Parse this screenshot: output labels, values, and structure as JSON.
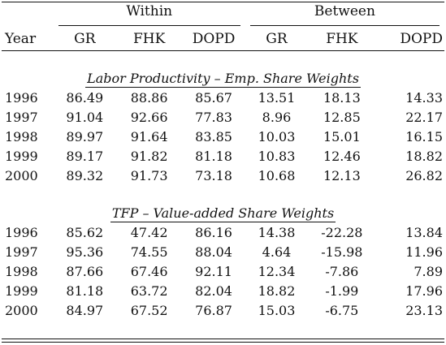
{
  "header": {
    "group_within": "Within",
    "group_between": "Between",
    "year": "Year",
    "cols": [
      "GR",
      "FHK",
      "DOPD",
      "GR",
      "FHK",
      "DOPD"
    ]
  },
  "sections": [
    {
      "title": "Labor Productivity – Emp. Share Weights",
      "rows": [
        {
          "year": "1996",
          "values": [
            "86.49",
            "88.86",
            "85.67",
            "13.51",
            "18.13",
            "14.33"
          ]
        },
        {
          "year": "1997",
          "values": [
            "91.04",
            "92.66",
            "77.83",
            "8.96",
            "12.85",
            "22.17"
          ]
        },
        {
          "year": "1998",
          "values": [
            "89.97",
            "91.64",
            "83.85",
            "10.03",
            "15.01",
            "16.15"
          ]
        },
        {
          "year": "1999",
          "values": [
            "89.17",
            "91.82",
            "81.18",
            "10.83",
            "12.46",
            "18.82"
          ]
        },
        {
          "year": "2000",
          "values": [
            "89.32",
            "91.73",
            "73.18",
            "10.68",
            "12.13",
            "26.82"
          ]
        }
      ]
    },
    {
      "title": "TFP – Value-added Share Weights",
      "rows": [
        {
          "year": "1996",
          "values": [
            "85.62",
            "47.42",
            "86.16",
            "14.38",
            "-22.28",
            "13.84"
          ]
        },
        {
          "year": "1997",
          "values": [
            "95.36",
            "74.55",
            "88.04",
            "4.64",
            "-15.98",
            "11.96"
          ]
        },
        {
          "year": "1998",
          "values": [
            "87.66",
            "67.46",
            "92.11",
            "12.34",
            "-7.86",
            "7.89"
          ]
        },
        {
          "year": "1999",
          "values": [
            "81.18",
            "63.72",
            "82.04",
            "18.82",
            "-1.99",
            "17.96"
          ]
        },
        {
          "year": "2000",
          "values": [
            "84.97",
            "67.52",
            "76.87",
            "15.03",
            "-6.75",
            "23.13"
          ]
        }
      ]
    }
  ]
}
